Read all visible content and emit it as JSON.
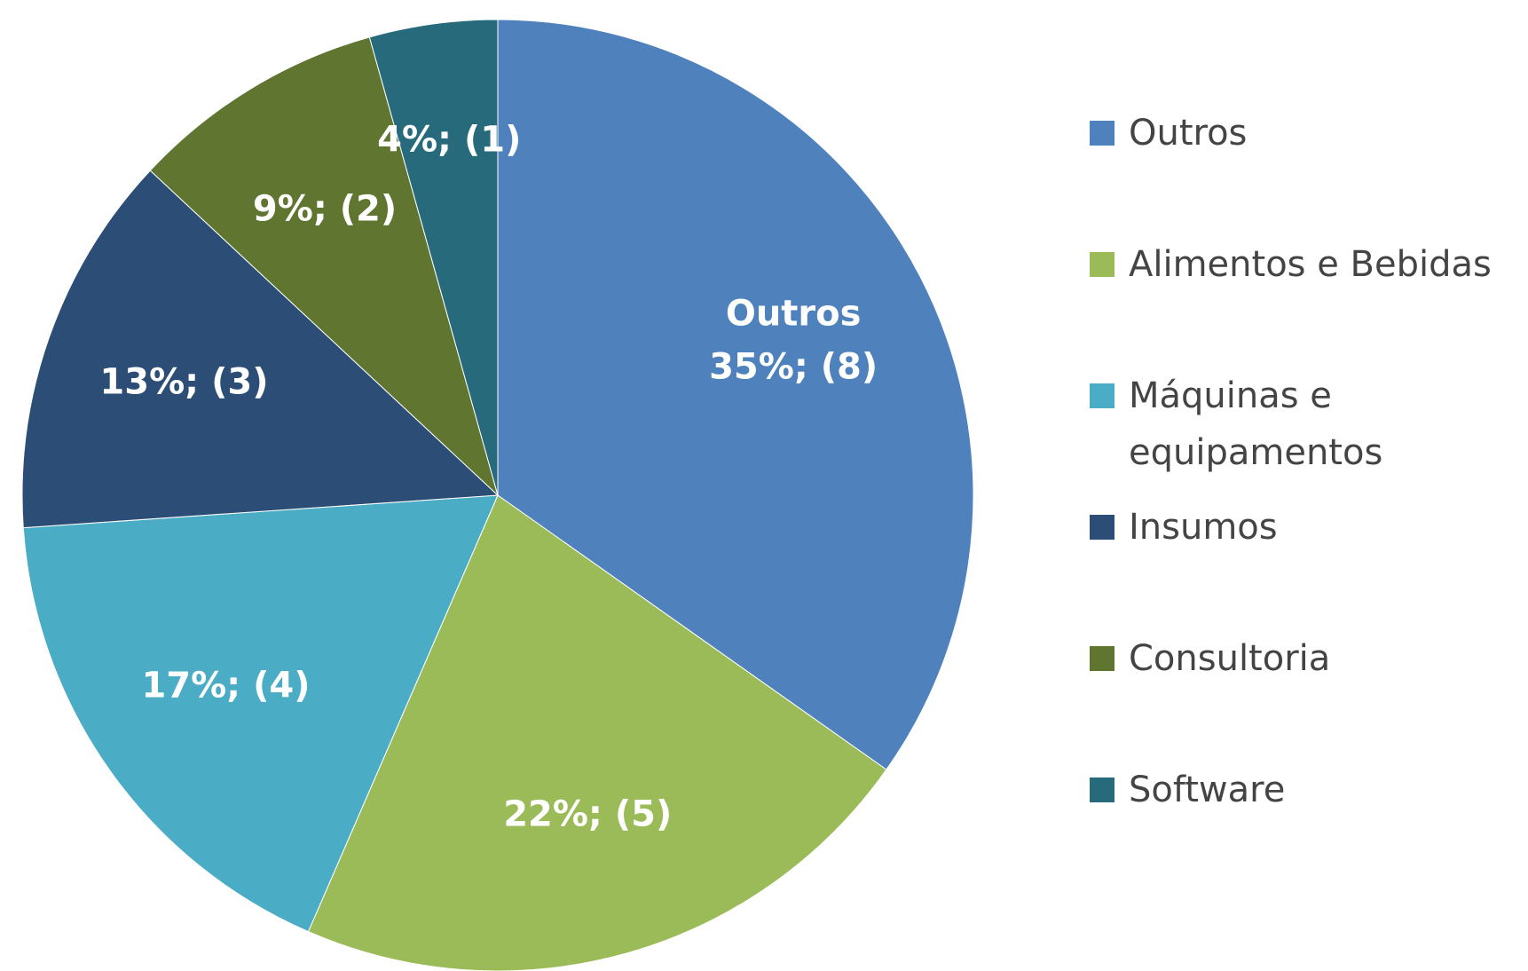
{
  "chart_data": {
    "type": "pie",
    "categories": [
      "Outros",
      "Alimentos e Bebidas",
      "Máquinas e equipamentos",
      "Insumos",
      "Consultoria",
      "Software"
    ],
    "values": [
      8,
      5,
      4,
      3,
      2,
      1
    ],
    "value_labels": [
      "35%; (8)",
      "22%; (5)",
      "17%; (4)",
      "13%; (3)",
      "9%; (2)",
      "4%; (1)"
    ],
    "colors": [
      "#4f81bd",
      "#9bbb59",
      "#4bacc6",
      "#2c4d75",
      "#5f7530",
      "#276a7c"
    ],
    "legend": "right"
  }
}
